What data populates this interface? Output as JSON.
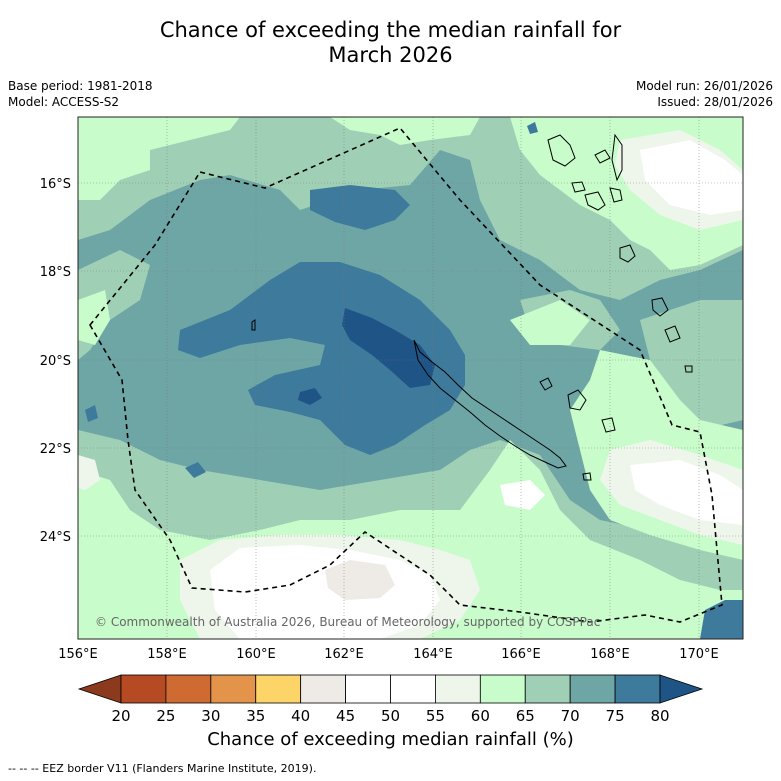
{
  "title": {
    "line1": "Chance of exceeding the median rainfall for",
    "line2": "March 2026"
  },
  "meta": {
    "base_period": "Base period: 1981-2018",
    "model": "Model: ACCESS-S2",
    "model_run": "Model run: 26/01/2026",
    "issued": "Issued: 28/01/2026"
  },
  "axes": {
    "lat_labels": [
      "16°S",
      "18°S",
      "20°S",
      "22°S",
      "24°S"
    ],
    "lon_labels": [
      "156°E",
      "158°E",
      "160°E",
      "162°E",
      "164°E",
      "166°E",
      "168°E",
      "170°E"
    ]
  },
  "copyright": "© Commonwealth of Australia 2026, Bureau of Meteorology, supported by COSPPac",
  "colorbar": {
    "title": "Chance of exceeding median rainfall (%)",
    "ticks": [
      "20",
      "25",
      "30",
      "35",
      "40",
      "45",
      "50",
      "55",
      "60",
      "65",
      "70",
      "75",
      "80"
    ],
    "colors": [
      "#8c3a1e",
      "#b54a23",
      "#cf6a33",
      "#e3944a",
      "#fdd468",
      "#eeeae6",
      "#ffffff",
      "#ffffff",
      "#eef6ec",
      "#c8fccb",
      "#9fd0b6",
      "#6ea6a6",
      "#3e7a9c",
      "#1e5586"
    ]
  },
  "footnote": "-- -- -- EEZ border V11 (Flanders Marine Institute, 2019).",
  "colors": {
    "c70_75": "#6ea6a6",
    "c65_70": "#9fd0b6",
    "c60_65": "#c8fccb",
    "c55_60": "#eef6ec",
    "c75_80": "#3e7a9c",
    "c80": "#1e5586",
    "c40_45": "#eeeae6"
  }
}
